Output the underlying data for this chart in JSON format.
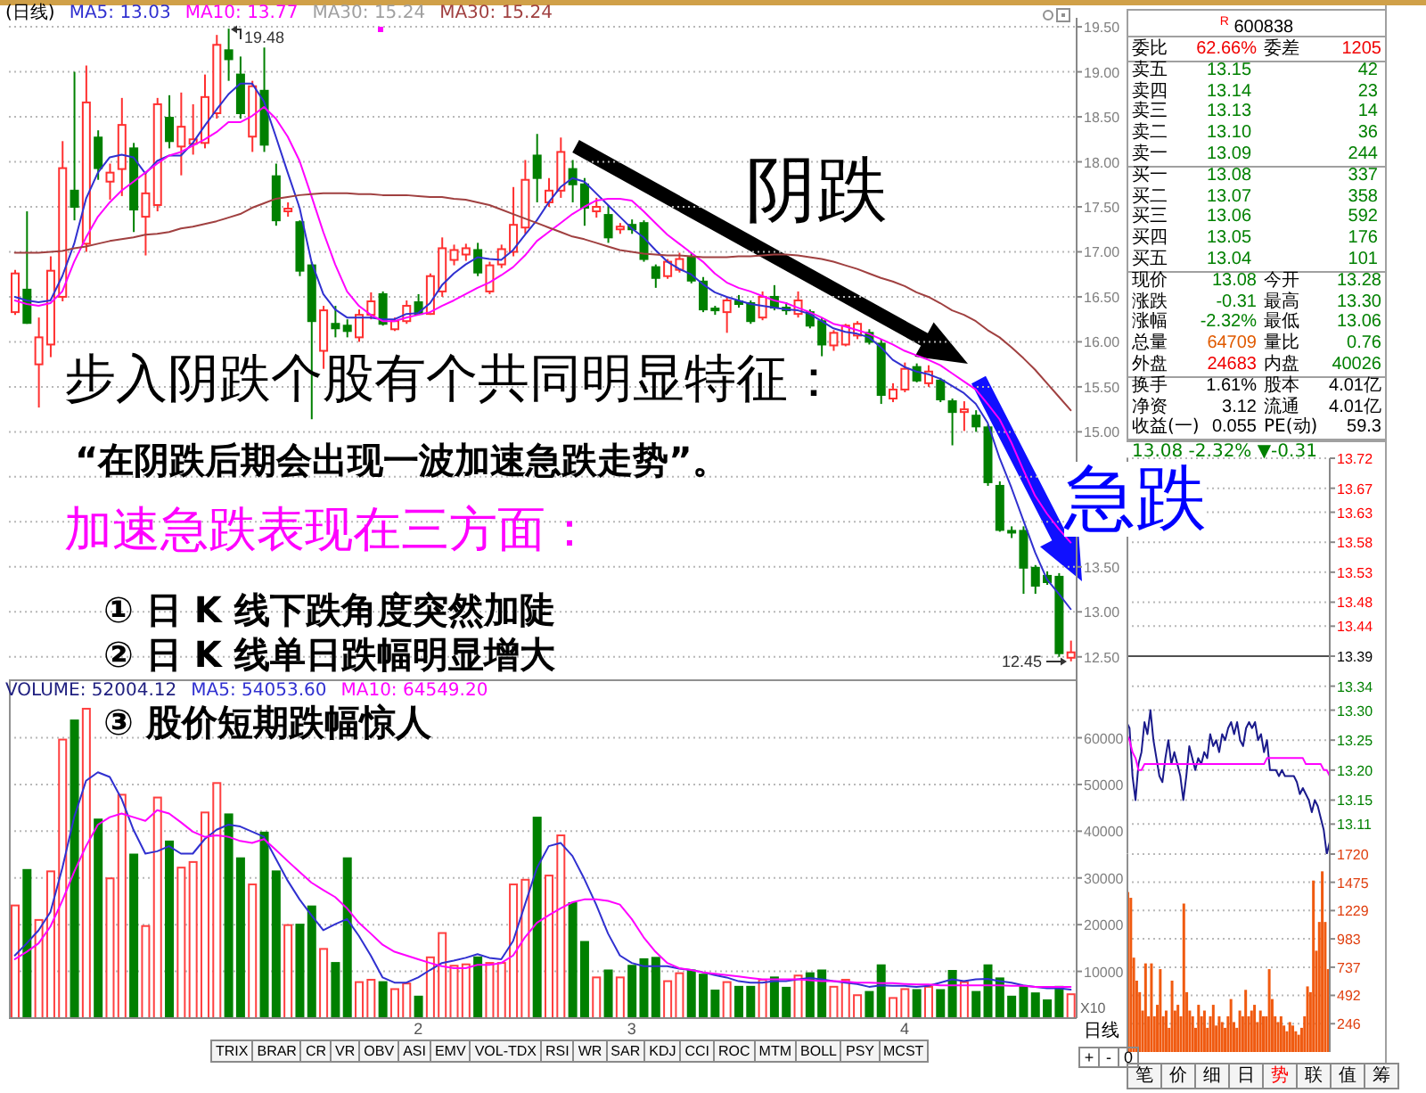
{
  "chart_data": [
    {
      "type": "candlestick",
      "title": "(日线)",
      "categories": [
        null,
        null,
        null,
        null,
        null,
        null,
        null,
        null,
        null,
        null,
        null,
        null,
        null,
        null,
        null,
        null,
        null,
        null,
        null,
        null,
        null,
        null,
        null,
        null,
        null,
        null,
        null,
        null,
        null,
        null,
        null,
        null,
        null,
        null,
        null,
        null,
        null,
        null,
        null,
        null,
        null,
        null,
        null,
        null,
        null,
        null,
        null,
        null,
        null,
        null,
        null,
        null,
        null,
        null,
        null,
        null,
        null,
        null,
        null,
        null,
        null,
        null,
        null,
        null,
        null,
        null,
        null,
        null,
        null,
        null,
        null,
        null,
        null,
        null,
        null,
        null,
        null,
        null,
        null,
        null,
        null,
        null,
        null,
        null,
        null,
        null,
        null,
        null,
        null,
        null
      ],
      "ohlc": [
        [
          16.33,
          16.8,
          16.3,
          16.76
        ],
        [
          16.58,
          17.45,
          16.2,
          16.21
        ],
        [
          15.75,
          16.27,
          15.27,
          16.05
        ],
        [
          15.97,
          16.95,
          15.83,
          16.79
        ],
        [
          16.5,
          18.23,
          16.45,
          17.93
        ],
        [
          17.68,
          19,
          17.35,
          17.5
        ],
        [
          17.09,
          19.07,
          17,
          18.66
        ],
        [
          18.27,
          18.35,
          17.8,
          17.93
        ],
        [
          17.78,
          17.98,
          17.58,
          17.88
        ],
        [
          17.92,
          18.71,
          17.62,
          18.41
        ],
        [
          18.15,
          18.21,
          17.22,
          17.47
        ],
        [
          17.39,
          17.88,
          16.96,
          17.65
        ],
        [
          17.52,
          18.71,
          17.45,
          18.64
        ],
        [
          18.49,
          18.74,
          18.15,
          18.23
        ],
        [
          18.17,
          18.77,
          17.85,
          18.39
        ],
        [
          18.2,
          18.64,
          18.08,
          18.25
        ],
        [
          18.21,
          18.97,
          18.15,
          18.72
        ],
        [
          18.54,
          19.41,
          18.48,
          19.3
        ],
        [
          19.24,
          19.48,
          18.9,
          19.14
        ],
        [
          18.97,
          19.17,
          18.48,
          18.54
        ],
        [
          18.28,
          18.9,
          18.11,
          18.84
        ],
        [
          18.79,
          19.27,
          18.11,
          18.19
        ],
        [
          17.84,
          17.98,
          17.29,
          17.35
        ],
        [
          17.45,
          17.55,
          17.39,
          17.48
        ],
        [
          17.33,
          17.35,
          16.73,
          16.79
        ],
        [
          16.85,
          16.89,
          15.14,
          16.23
        ],
        [
          15.9,
          16.4,
          15.7,
          16.35
        ],
        [
          16.2,
          16.4,
          16.05,
          16.15
        ],
        [
          16.18,
          16.25,
          16.05,
          16.12
        ],
        [
          16.05,
          16.36,
          16,
          16.3
        ],
        [
          16.3,
          16.55,
          16.25,
          16.45
        ],
        [
          16.53,
          16.56,
          16.18,
          16.2
        ],
        [
          16.14,
          16.27,
          16.12,
          16.23
        ],
        [
          16.23,
          16.46,
          16.2,
          16.4
        ],
        [
          16.44,
          16.53,
          16.3,
          16.31
        ],
        [
          16.31,
          16.76,
          16.3,
          16.73
        ],
        [
          16.56,
          17.16,
          16.5,
          17.04
        ],
        [
          16.91,
          17.08,
          16.85,
          17.02
        ],
        [
          16.97,
          17.09,
          16.9,
          17.04
        ],
        [
          17.02,
          17.1,
          16.73,
          16.77
        ],
        [
          16.56,
          16.89,
          16.53,
          16.85
        ],
        [
          16.86,
          17.08,
          16.82,
          17.03
        ],
        [
          17,
          17.72,
          16.95,
          17.3
        ],
        [
          17.27,
          18.02,
          17.2,
          17.8
        ],
        [
          18.07,
          18.31,
          17.55,
          17.82
        ],
        [
          17.55,
          17.82,
          17.5,
          17.68
        ],
        [
          17.68,
          18.27,
          17.6,
          18.11
        ],
        [
          17.92,
          18.02,
          17.55,
          17.75
        ],
        [
          17.75,
          17.82,
          17.29,
          17.49
        ],
        [
          17.45,
          17.6,
          17.38,
          17.5
        ],
        [
          17.41,
          17.52,
          17.1,
          17.16
        ],
        [
          17.25,
          17.32,
          17.2,
          17.28
        ],
        [
          17.3,
          17.36,
          17.2,
          17.25
        ],
        [
          17.32,
          17.35,
          16.89,
          16.92
        ],
        [
          16.83,
          16.86,
          16.6,
          16.71
        ],
        [
          16.73,
          16.92,
          16.7,
          16.89
        ],
        [
          16.8,
          16.99,
          16.77,
          16.92
        ],
        [
          16.94,
          16.99,
          16.65,
          16.68
        ],
        [
          16.67,
          16.72,
          16.33,
          16.36
        ],
        [
          16.37,
          16.4,
          16.3,
          16.35
        ],
        [
          16.33,
          16.5,
          16.1,
          16.46
        ],
        [
          16.45,
          16.52,
          16.38,
          16.42
        ],
        [
          16.43,
          16.46,
          16.2,
          16.23
        ],
        [
          16.27,
          16.56,
          16.24,
          16.5
        ],
        [
          16.5,
          16.63,
          16.35,
          16.38
        ],
        [
          16.38,
          16.44,
          16.3,
          16.35
        ],
        [
          16.31,
          16.56,
          16.27,
          16.46
        ],
        [
          16.33,
          16.36,
          16.15,
          16.18
        ],
        [
          16.23,
          16.27,
          15.84,
          15.97
        ],
        [
          15.96,
          16.13,
          15.9,
          16.1
        ],
        [
          15.97,
          16.2,
          15.95,
          16.18
        ],
        [
          16.07,
          16.23,
          16.03,
          16.2
        ],
        [
          16.1,
          16.14,
          15.97,
          16
        ],
        [
          15.98,
          16.03,
          15.31,
          15.41
        ],
        [
          15.37,
          15.54,
          15.33,
          15.47
        ],
        [
          15.47,
          15.77,
          15.44,
          15.7
        ],
        [
          15.72,
          15.76,
          15.55,
          15.57
        ],
        [
          15.54,
          15.74,
          15.5,
          15.67
        ],
        [
          15.57,
          15.6,
          15.33,
          15.36
        ],
        [
          15.34,
          15.37,
          14.85,
          15.22
        ],
        [
          15.22,
          15.34,
          15.01,
          15.25
        ],
        [
          15.18,
          15.24,
          15,
          15.06
        ],
        [
          15.05,
          15.08,
          14.4,
          14.44
        ],
        [
          14.4,
          14.45,
          13.89,
          13.91
        ],
        [
          13.9,
          13.95,
          13.82,
          13.88
        ],
        [
          13.9,
          13.95,
          13.2,
          13.49
        ],
        [
          13.49,
          13.52,
          13.2,
          13.29
        ],
        [
          13.4,
          13.45,
          13.3,
          13.33
        ],
        [
          13.39,
          13.43,
          12.5,
          12.54
        ],
        [
          12.49,
          12.68,
          12.45,
          12.55
        ]
      ],
      "series": [
        {
          "name": "MA5: 13.03",
          "type": "line",
          "color": "#3030d0",
          "values": [
            16.5,
            16.46,
            16.44,
            16.46,
            16.73,
            17.09,
            17.59,
            17.88,
            18.05,
            18.08,
            18.05,
            17.87,
            18.01,
            18.07,
            18.07,
            18.21,
            18.4,
            18.58,
            18.75,
            18.87,
            18.87,
            18.67,
            18.28,
            17.88,
            17.49,
            16.89,
            16.53,
            16.36,
            16.27,
            16.27,
            16.27,
            16.25,
            16.25,
            16.31,
            16.32,
            16.43,
            16.63,
            16.76,
            16.86,
            16.94,
            16.92,
            16.91,
            17.02,
            17.19,
            17.35,
            17.55,
            17.72,
            17.82,
            17.78,
            17.65,
            17.52,
            17.39,
            17.26,
            17.16,
            17.02,
            16.89,
            16.81,
            16.75,
            16.64,
            16.55,
            16.5,
            16.46,
            16.42,
            16.4,
            16.38,
            16.36,
            16.35,
            16.31,
            16.23,
            16.15,
            16.11,
            16.09,
            16.05,
            15.94,
            15.8,
            15.72,
            15.67,
            15.64,
            15.59,
            15.51,
            15.43,
            15.31,
            15.1,
            14.71,
            14.38,
            14.02,
            13.66,
            13.36,
            13.2,
            13.03
          ]
        },
        {
          "name": "MA10: 13.77",
          "type": "line",
          "color": "#ff00ff",
          "values": [
            16.46,
            16.42,
            16.4,
            16.43,
            16.56,
            16.89,
            17.16,
            17.39,
            17.55,
            17.68,
            17.78,
            17.88,
            17.98,
            18.07,
            18.11,
            18.18,
            18.25,
            18.33,
            18.44,
            18.44,
            18.51,
            18.61,
            18.48,
            18.28,
            18.01,
            17.62,
            17.22,
            16.86,
            16.56,
            16.4,
            16.3,
            16.23,
            16.23,
            16.27,
            16.3,
            16.33,
            16.4,
            16.46,
            16.53,
            16.6,
            16.66,
            16.74,
            16.83,
            16.96,
            17.12,
            17.22,
            17.32,
            17.42,
            17.5,
            17.57,
            17.59,
            17.59,
            17.57,
            17.45,
            17.32,
            17.19,
            17.09,
            16.99,
            16.89,
            16.76,
            16.66,
            16.6,
            16.56,
            16.51,
            16.46,
            16.43,
            16.38,
            16.33,
            16.27,
            16.2,
            16.17,
            16.13,
            16.09,
            16.03,
            15.97,
            15.9,
            15.85,
            15.8,
            15.74,
            15.65,
            15.56,
            15.47,
            15.31,
            15.14,
            14.88,
            14.58,
            14.29,
            14.09,
            13.92,
            13.77
          ]
        },
        {
          "name": "MA30: 15.24",
          "type": "line",
          "color": "#a04040",
          "values": [
            16.99,
            16.99,
            16.99,
            17,
            17.01,
            17.04,
            17.06,
            17.09,
            17.12,
            17.14,
            17.16,
            17.19,
            17.2,
            17.22,
            17.26,
            17.28,
            17.31,
            17.34,
            17.38,
            17.42,
            17.49,
            17.54,
            17.59,
            17.61,
            17.63,
            17.64,
            17.65,
            17.65,
            17.65,
            17.64,
            17.64,
            17.63,
            17.63,
            17.63,
            17.62,
            17.61,
            17.61,
            17.59,
            17.58,
            17.55,
            17.52,
            17.47,
            17.42,
            17.37,
            17.32,
            17.27,
            17.22,
            17.17,
            17.14,
            17.1,
            17.06,
            17.02,
            17,
            16.98,
            16.97,
            16.96,
            16.96,
            16.95,
            16.94,
            16.94,
            16.94,
            16.95,
            16.95,
            16.96,
            16.97,
            16.97,
            16.96,
            16.94,
            16.92,
            16.89,
            16.85,
            16.81,
            16.76,
            16.71,
            16.67,
            16.62,
            16.55,
            16.5,
            16.43,
            16.35,
            16.3,
            16.23,
            16.13,
            16.05,
            15.94,
            15.82,
            15.69,
            15.54,
            15.39,
            15.24
          ]
        }
      ],
      "ylim": [
        12.25,
        19.6
      ],
      "yticks": [
        {
          "value": 12.5,
          "label": "12.50"
        },
        {
          "value": 13,
          "label": "13.00"
        },
        {
          "value": 13.5,
          "label": "13.50"
        },
        {
          "value": 14,
          "label": null
        },
        {
          "value": 14.5,
          "label": null
        },
        {
          "value": 15,
          "label": "15.00"
        },
        {
          "value": 15.5,
          "label": "15.50"
        },
        {
          "value": 16,
          "label": "16.00"
        },
        {
          "value": 16.5,
          "label": "16.50"
        },
        {
          "value": 17,
          "label": "17.00"
        },
        {
          "value": 17.5,
          "label": "17.50"
        },
        {
          "value": 18,
          "label": "18.00"
        },
        {
          "value": 18.5,
          "label": "18.50"
        },
        {
          "value": 19,
          "label": "19.00"
        },
        {
          "value": 19.5,
          "label": "19.50"
        }
      ],
      "grid": "y",
      "legend": "top left",
      "tick_labels": "y",
      "annotations": [
        "MA30: 15.24",
        "阴跌",
        "急跌",
        "步入阴跌个股有个共同明显特征：",
        "“在阴跌后期会出现一波加速急跌走势”。",
        "加速急跌表现在三方面：",
        "① 日 K 线下跌角度突然加陡",
        "② 日 K 线单日跌幅明显增大",
        "③ 股价短期跌幅惊人",
        "19.48",
        "12.45"
      ]
    },
    {
      "type": "bar",
      "categories": [
        null,
        null,
        null,
        null,
        null,
        null,
        null,
        null,
        null,
        null,
        null,
        null,
        null,
        null,
        null,
        null,
        null,
        null,
        null,
        null,
        null,
        null,
        null,
        null,
        null,
        null,
        null,
        null,
        null,
        null,
        null,
        null,
        null,
        null,
        "2",
        null,
        null,
        null,
        null,
        null,
        null,
        null,
        null,
        null,
        null,
        null,
        null,
        null,
        null,
        null,
        null,
        null,
        "3",
        null,
        null,
        null,
        null,
        null,
        null,
        null,
        null,
        null,
        null,
        null,
        null,
        null,
        null,
        null,
        null,
        null,
        null,
        null,
        null,
        null,
        null,
        "4",
        null,
        null,
        null,
        null,
        null,
        null,
        null,
        null,
        null,
        null,
        null,
        null,
        null,
        null
      ],
      "series": [
        {
          "name": "VOLUME: 52004.12",
          "type": "bar",
          "colors": [
            "#ff4040",
            "#008000",
            "#ff4040",
            "#ff4040",
            "#ff4040",
            "#008000",
            "#ff4040",
            "#008000",
            "#ff4040",
            "#ff4040",
            "#008000",
            "#ff4040",
            "#ff4040",
            "#008000",
            "#ff4040",
            "#ff4040",
            "#ff4040",
            "#ff4040",
            "#008000",
            "#008000",
            "#ff4040",
            "#008000",
            "#008000",
            "#ff4040",
            "#008000",
            "#008000",
            "#ff4040",
            "#008000",
            "#008000",
            "#ff4040",
            "#ff4040",
            "#008000",
            "#ff4040",
            "#ff4040",
            "#008000",
            "#ff4040",
            "#ff4040",
            "#ff4040",
            "#ff4040",
            "#008000",
            "#ff4040",
            "#ff4040",
            "#ff4040",
            "#ff4040",
            "#008000",
            "#ff4040",
            "#ff4040",
            "#008000",
            "#008000",
            "#ff4040",
            "#008000",
            "#ff4040",
            "#008000",
            "#008000",
            "#008000",
            "#ff4040",
            "#ff4040",
            "#008000",
            "#008000",
            "#008000",
            "#ff4040",
            "#008000",
            "#008000",
            "#ff4040",
            "#008000",
            "#008000",
            "#ff4040",
            "#008000",
            "#008000",
            "#ff4040",
            "#ff4040",
            "#ff4040",
            "#008000",
            "#008000",
            "#ff4040",
            "#ff4040",
            "#008000",
            "#ff4040",
            "#008000",
            "#008000",
            "#ff4040",
            "#008000",
            "#008000",
            "#008000",
            "#008000",
            "#008000",
            "#008000",
            "#008000",
            "#008000",
            "#ff4040"
          ],
          "values": [
            24300,
            31900,
            21200,
            31600,
            59800,
            63900,
            66400,
            42700,
            30100,
            48000,
            35200,
            19900,
            47400,
            38000,
            32400,
            33600,
            44200,
            50500,
            43800,
            34400,
            28800,
            39900,
            31600,
            20100,
            20200,
            24100,
            15000,
            12000,
            34400,
            7900,
            8400,
            7900,
            6400,
            7600,
            4800,
            13200,
            18400,
            11400,
            11700,
            13200,
            12000,
            12000,
            28800,
            29800,
            43100,
            30700,
            39300,
            24800,
            16500,
            8900,
            10400,
            8900,
            11400,
            12800,
            13100,
            8100,
            9800,
            10400,
            9500,
            6100,
            7900,
            6900,
            6900,
            8400,
            8900,
            6700,
            9300,
            9800,
            10400,
            6900,
            8400,
            5100,
            5800,
            11500,
            4500,
            6400,
            6200,
            6900,
            6200,
            10300,
            7900,
            5800,
            11500,
            8700,
            4800,
            6900,
            5500,
            4000,
            6900,
            5300
          ]
        },
        {
          "name": "MA5: 54053.60",
          "type": "line",
          "color": "#3030d0",
          "values": [
            13400,
            16000,
            18800,
            22700,
            32100,
            43000,
            50800,
            52600,
            51600,
            46900,
            40300,
            35200,
            35700,
            36800,
            35200,
            35200,
            38300,
            40300,
            41400,
            41000,
            39900,
            38800,
            34100,
            29400,
            25400,
            22000,
            18800,
            20100,
            21200,
            17600,
            13400,
            8700,
            7600,
            7600,
            8700,
            10300,
            11800,
            12300,
            12900,
            13700,
            12900,
            12600,
            16500,
            24300,
            32100,
            36800,
            37500,
            34700,
            29800,
            24300,
            18100,
            13400,
            11800,
            11100,
            11100,
            11100,
            10600,
            10300,
            9800,
            9200,
            8700,
            7900,
            7600,
            7600,
            7900,
            7900,
            8300,
            8600,
            8300,
            7900,
            7600,
            7300,
            6700,
            7000,
            6900,
            6900,
            6700,
            6900,
            7600,
            8300,
            7900,
            8300,
            8400,
            7900,
            7600,
            7000,
            6700,
            6400,
            6400,
            6100
          ]
        },
        {
          "name": "MA10: 64549.20",
          "type": "line",
          "color": "#ff00ff",
          "values": [
            12600,
            14200,
            16000,
            19600,
            25100,
            31300,
            36800,
            41400,
            43000,
            43800,
            43000,
            42200,
            44500,
            43800,
            41900,
            39900,
            38800,
            39100,
            38800,
            37900,
            37500,
            38300,
            36000,
            33600,
            31300,
            29000,
            27400,
            25900,
            23500,
            20400,
            18100,
            15700,
            14200,
            13400,
            12600,
            11800,
            11100,
            10700,
            10700,
            11400,
            11400,
            11800,
            13400,
            17300,
            20400,
            22000,
            23500,
            24800,
            25400,
            25400,
            25100,
            24300,
            21200,
            17300,
            14200,
            11800,
            10700,
            10300,
            9800,
            9500,
            9200,
            8900,
            8600,
            8300,
            8300,
            8300,
            8300,
            8100,
            7900,
            7900,
            7800,
            7600,
            7600,
            7500,
            7500,
            7300,
            7200,
            7200,
            7000,
            7000,
            7000,
            7000,
            7000,
            7000,
            6900,
            6900,
            6700,
            6700,
            6700,
            6700
          ]
        }
      ],
      "ylim": [
        0,
        72500
      ],
      "yticks": [
        10000,
        20000,
        30000,
        40000,
        50000,
        60000
      ],
      "ylabel": "X10",
      "grid": "y",
      "legend": "top left",
      "annotations": [
        "TRIX",
        "BRAR",
        "CR",
        "VR",
        "OBV",
        "ASI",
        "EMV",
        "VOL-TDX",
        "RSI",
        "WR",
        "SAR",
        "KDJ",
        "CCI",
        "ROC",
        "MTM",
        "BOLL",
        "PSY",
        "MCST"
      ]
    },
    {
      "type": "other",
      "title": "$^{R}$ 600838",
      "annotations": [
        "委比 62.66% 委差 1205",
        "卖五 13.15 42",
        "卖四 13.14 23",
        "卖三 13.13 14",
        "卖二 13.10 36",
        "卖一 13.09 244",
        "买一 13.08 337",
        "买二 13.07 358",
        "买三 13.06 592",
        "买四 13.05 176",
        "买五 13.04 101",
        "现价 13.08 今开 13.28",
        "涨跌 -0.31 最高 13.30",
        "涨幅 -2.32% 最低 13.06",
        "总量 64709 量比 0.76",
        "外盘 24683 内盘 40026",
        "换手 1.61% 股本 4.01亿",
        "净资 3.12 流通 4.01亿",
        "收益(一) 0.055 PE(动) 59.3"
      ]
    },
    {
      "type": "line",
      "title": "13.08 -2.32% ▼-0.31",
      "categories": [
        null,
        null,
        null,
        null,
        null,
        null,
        null,
        null,
        null,
        null,
        null,
        null,
        null,
        null,
        null,
        null,
        null,
        null,
        null,
        null,
        null,
        null,
        null,
        null,
        null,
        null,
        null,
        null,
        null,
        null,
        null,
        null,
        null,
        null,
        null,
        null,
        null,
        null,
        null,
        null,
        null,
        null,
        null,
        null,
        null,
        null,
        null,
        null,
        null,
        null,
        null,
        null,
        null,
        null,
        null,
        null,
        null,
        null,
        null,
        null,
        null,
        null,
        null,
        null,
        null,
        null,
        null,
        null,
        null
      ],
      "series": [
        {
          "type": "line",
          "color": "#1a1a8c",
          "values": [
            13.28,
            13.27,
            13.19,
            13.15,
            13.21,
            13.23,
            13.28,
            13.26,
            13.3,
            13.25,
            13.22,
            13.19,
            13.18,
            13.22,
            13.25,
            13.21,
            13.23,
            13.21,
            13.19,
            13.15,
            13.19,
            13.24,
            13.22,
            13.2,
            13.22,
            13.21,
            13.23,
            13.22,
            13.26,
            13.24,
            13.25,
            13.23,
            13.26,
            13.25,
            13.27,
            13.28,
            13.26,
            13.28,
            13.25,
            13.24,
            13.27,
            13.28,
            13.27,
            13.28,
            13.25,
            13.26,
            13.23,
            13.25,
            13.2,
            13.2,
            13.2,
            13.19,
            13.2,
            13.19,
            13.19,
            13.19,
            13.19,
            13.18,
            13.16,
            13.17,
            13.16,
            13.15,
            13.13,
            13.15,
            13.14,
            13.12,
            13.1,
            13.06,
            13.08
          ]
        },
        {
          "type": "line",
          "color": "#ff00ff",
          "values": [
            13.26,
            13.25,
            13.23,
            13.22,
            13.2,
            13.2,
            13.21,
            13.21,
            13.21,
            13.21,
            13.21,
            13.21,
            13.21,
            13.21,
            13.21,
            13.21,
            13.21,
            13.21,
            13.21,
            13.21,
            13.21,
            13.21,
            13.21,
            13.21,
            13.21,
            13.21,
            13.21,
            13.21,
            13.21,
            13.21,
            13.21,
            13.21,
            13.21,
            13.21,
            13.21,
            13.21,
            13.21,
            13.21,
            13.21,
            13.21,
            13.21,
            13.21,
            13.21,
            13.21,
            13.21,
            13.21,
            13.21,
            13.22,
            13.22,
            13.22,
            13.22,
            13.22,
            13.22,
            13.22,
            13.22,
            13.22,
            13.22,
            13.22,
            13.22,
            13.22,
            13.21,
            13.21,
            13.21,
            13.21,
            13.21,
            13.21,
            13.2,
            13.2,
            13.19
          ]
        }
      ],
      "ylim": [
        13.06,
        13.72
      ],
      "yticks": [
        13.11,
        13.15,
        {
          "value": 13.2,
          "label": "13.20"
        },
        13.25,
        {
          "value": 13.3,
          "label": "13.30"
        },
        13.34,
        13.39,
        13.44,
        13.48,
        13.53,
        13.58,
        13.63,
        13.67,
        13.72
      ],
      "ref_lines": [
        {
          "axis": "y",
          "value": 13.39
        }
      ],
      "grid": "y",
      "tick_labels": "y"
    },
    {
      "type": "bar",
      "categories": [
        null,
        null,
        null,
        null,
        null,
        null,
        null,
        null,
        null,
        null,
        null,
        null,
        null,
        null,
        null,
        null,
        null,
        null,
        null,
        null,
        null,
        null,
        null,
        null,
        null,
        null,
        null,
        null,
        null,
        null,
        null,
        null,
        null,
        null,
        null,
        null,
        null,
        null,
        null,
        null,
        null,
        null,
        null,
        null,
        null,
        null,
        null,
        null,
        null,
        null,
        null,
        null,
        null,
        null,
        null,
        null,
        null,
        null,
        null,
        null,
        null,
        null,
        null,
        null,
        null,
        null,
        null,
        null,
        null
      ],
      "values": [
        1390,
        1340,
        820,
        620,
        520,
        360,
        770,
        310,
        770,
        310,
        410,
        720,
        310,
        360,
        210,
        620,
        360,
        410,
        310,
        1290,
        520,
        360,
        310,
        210,
        410,
        310,
        360,
        210,
        310,
        410,
        230,
        310,
        260,
        210,
        310,
        460,
        260,
        210,
        360,
        310,
        540,
        310,
        360,
        410,
        260,
        360,
        310,
        310,
        720,
        460,
        310,
        260,
        310,
        230,
        180,
        260,
        230,
        180,
        150,
        210,
        310,
        570,
        520,
        1490,
        880,
        1130,
        1570,
        1130,
        720
      ],
      "color": "#f05a10",
      "ylim": [
        0,
        1720
      ],
      "yticks": [
        246,
        492,
        737,
        983,
        1229,
        1475,
        1720
      ],
      "grid": "y",
      "tick_labels": "y",
      "annotations": [
        "笔",
        "价",
        "细",
        "日",
        "势",
        "联",
        "值",
        "筹"
      ]
    },
    {
      "type": "other",
      "annotations": [
        "日线",
        "+",
        "-",
        "0"
      ]
    }
  ]
}
